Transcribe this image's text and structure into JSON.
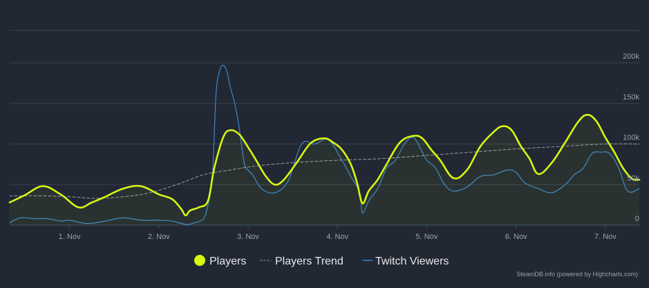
{
  "chart_data": {
    "type": "line",
    "title": "",
    "xlabel": "",
    "ylabel": "",
    "ylim": [
      0,
      240000
    ],
    "xlim": [
      0.33,
      7.38
    ],
    "grid": true,
    "x_ticks": [
      {
        "value": 1,
        "label": "1. Nov"
      },
      {
        "value": 2,
        "label": "2. Nov"
      },
      {
        "value": 3,
        "label": "3. Nov"
      },
      {
        "value": 4,
        "label": "4. Nov"
      },
      {
        "value": 5,
        "label": "5. Nov"
      },
      {
        "value": 6,
        "label": "6. Nov"
      },
      {
        "value": 7,
        "label": "7. Nov"
      }
    ],
    "y_ticks": [
      {
        "value": 0,
        "label": "0"
      },
      {
        "value": 50000,
        "label": "50k"
      },
      {
        "value": 100000,
        "label": "100k"
      },
      {
        "value": 150000,
        "label": "150k"
      },
      {
        "value": 200000,
        "label": "200k"
      }
    ],
    "series": [
      {
        "name": "Twitch Viewers",
        "color": "#3b87cc",
        "style": "solid",
        "x": [
          0.33,
          0.45,
          0.6,
          0.75,
          0.9,
          1.0,
          1.2,
          1.4,
          1.6,
          1.8,
          2.0,
          2.15,
          2.3,
          2.4,
          2.5,
          2.55,
          2.6,
          2.64,
          2.68,
          2.72,
          2.76,
          2.8,
          2.85,
          2.9,
          2.95,
          2.98,
          3.05,
          3.15,
          3.3,
          3.45,
          3.6,
          3.75,
          3.9,
          4.05,
          4.15,
          4.25,
          4.28,
          4.35,
          4.45,
          4.55,
          4.65,
          4.75,
          4.85,
          4.95,
          5.0,
          5.1,
          5.2,
          5.3,
          5.45,
          5.6,
          5.75,
          5.9,
          6.0,
          6.1,
          6.25,
          6.4,
          6.55,
          6.65,
          6.75,
          6.85,
          6.95,
          7.05,
          7.15,
          7.25,
          7.38
        ],
        "values": [
          3000,
          9000,
          8000,
          8000,
          5000,
          6000,
          2000,
          5000,
          9000,
          6000,
          6000,
          5000,
          1000,
          3000,
          8000,
          25000,
          60000,
          160000,
          190000,
          197000,
          190000,
          170000,
          150000,
          120000,
          80000,
          70000,
          62000,
          45000,
          40000,
          55000,
          100000,
          100000,
          105000,
          80000,
          60000,
          40000,
          15000,
          30000,
          45000,
          70000,
          80000,
          100000,
          108000,
          90000,
          80000,
          70000,
          50000,
          42000,
          47000,
          60000,
          62000,
          68000,
          65000,
          52000,
          45000,
          40000,
          50000,
          62000,
          70000,
          88000,
          90000,
          88000,
          70000,
          42000,
          45000
        ]
      },
      {
        "name": "Players Trend",
        "color": "#9aa0a6",
        "style": "dashed",
        "x": [
          0.33,
          0.7,
          1.0,
          1.3,
          1.6,
          1.9,
          2.2,
          2.5,
          2.8,
          3.1,
          3.5,
          4.0,
          4.5,
          5.0,
          5.5,
          6.0,
          6.5,
          7.0,
          7.38
        ],
        "values": [
          36000,
          36000,
          35000,
          33000,
          35000,
          40000,
          50000,
          62000,
          68000,
          73000,
          77000,
          80000,
          82000,
          86000,
          90000,
          94000,
          97000,
          100000,
          100000
        ]
      },
      {
        "name": "Players",
        "color": "#d7f712",
        "style": "solid-bold",
        "x": [
          0.33,
          0.5,
          0.7,
          0.9,
          1.1,
          1.25,
          1.4,
          1.6,
          1.8,
          2.0,
          2.15,
          2.25,
          2.3,
          2.35,
          2.45,
          2.55,
          2.62,
          2.72,
          2.8,
          2.9,
          3.0,
          3.1,
          3.2,
          3.3,
          3.4,
          3.55,
          3.7,
          3.85,
          3.95,
          4.05,
          4.15,
          4.22,
          4.28,
          4.35,
          4.45,
          4.55,
          4.7,
          4.85,
          4.95,
          5.05,
          5.15,
          5.3,
          5.45,
          5.6,
          5.75,
          5.85,
          5.95,
          6.05,
          6.15,
          6.25,
          6.4,
          6.55,
          6.7,
          6.8,
          6.9,
          7.0,
          7.1,
          7.2,
          7.3,
          7.38
        ],
        "values": [
          28000,
          37000,
          48000,
          38000,
          22000,
          28000,
          35000,
          45000,
          48000,
          38000,
          32000,
          20000,
          12000,
          18000,
          22000,
          30000,
          70000,
          108000,
          117000,
          112000,
          96000,
          78000,
          60000,
          50000,
          56000,
          78000,
          101000,
          107000,
          102000,
          93000,
          75000,
          52000,
          27000,
          42000,
          56000,
          75000,
          102000,
          110000,
          107000,
          93000,
          80000,
          58000,
          68000,
          97000,
          115000,
          122000,
          117000,
          98000,
          82000,
          63000,
          77000,
          102000,
          128000,
          136000,
          128000,
          108000,
          90000,
          70000,
          57000,
          56000
        ]
      }
    ],
    "legend": {
      "position": "bottom-center",
      "items": [
        {
          "label": "Players",
          "color": "#d7f712",
          "marker": "circle"
        },
        {
          "label": "Players Trend",
          "color": "#9aa0a6",
          "marker": "dashed-line"
        },
        {
          "label": "Twitch Viewers",
          "color": "#3b87cc",
          "marker": "line"
        }
      ]
    }
  },
  "credit": "SteamDB.info (powered by Highcharts.com)"
}
